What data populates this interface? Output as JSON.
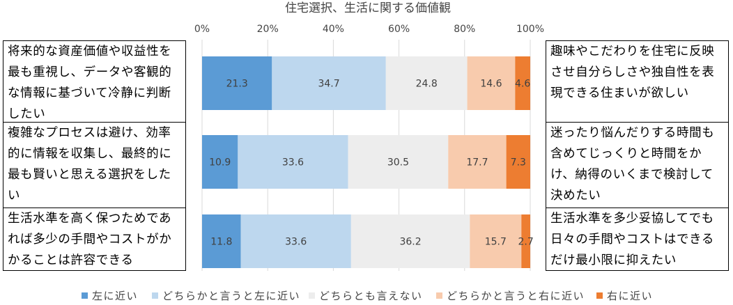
{
  "chart_data": {
    "type": "bar",
    "orientation": "horizontal",
    "stacked": true,
    "title": "住宅選択、生活に関する価値観",
    "x_ticks": [
      "0%",
      "20%",
      "40%",
      "60%",
      "80%",
      "100%"
    ],
    "xlim": [
      0,
      100
    ],
    "grid": true,
    "legend_position": "bottom",
    "series": [
      {
        "name": "左に近い",
        "color": "#5b9bd5",
        "values": [
          21.3,
          10.9,
          11.8
        ]
      },
      {
        "name": "どちらかと言うと左に近い",
        "color": "#bdd7ee",
        "values": [
          34.7,
          33.6,
          33.6
        ]
      },
      {
        "name": "どちらとも言えない",
        "color": "#ededed",
        "values": [
          24.8,
          30.5,
          36.2
        ]
      },
      {
        "name": "どちらかと言うと右に近い",
        "color": "#f8cbad",
        "values": [
          14.6,
          17.7,
          15.7
        ]
      },
      {
        "name": "右に近い",
        "color": "#ed7d31",
        "values": [
          4.6,
          7.3,
          2.7
        ]
      }
    ],
    "value_labels": [
      [
        "21.3",
        "34.7",
        "24.8",
        "14.6",
        "4.6"
      ],
      [
        "10.9",
        "33.6",
        "30.5",
        "17.7",
        "7.3"
      ],
      [
        "11.8",
        "33.6",
        "36.2",
        "15.7",
        "2.7"
      ]
    ],
    "left_labels": [
      [
        "将来的な資産価値や収益性を",
        "最も重視し、データや客観的",
        "な情報に基づいて冷静に判断",
        "したい"
      ],
      [
        "複雑なプロセスは避け、効率",
        "的に情報を収集し、最終的に",
        "最も賢いと思える選択をした",
        "い"
      ],
      [
        "生活水準を高く保つためであ",
        "れば多少の手間やコストがか",
        "かることは許容できる"
      ]
    ],
    "right_labels": [
      [
        "趣味やこだわりを住宅に反映",
        "させ自分らしさや独自性を表",
        "現できる住まいが欲しい"
      ],
      [
        "迷ったり悩んだりする時間も",
        "含めてじっくりと時間をか",
        "け、納得のいくまで検討して",
        "決めたい"
      ],
      [
        "生活水準を多少妥協してでも",
        "日々の手間やコストはできる",
        "だけ最小限に抑えたい"
      ]
    ]
  }
}
